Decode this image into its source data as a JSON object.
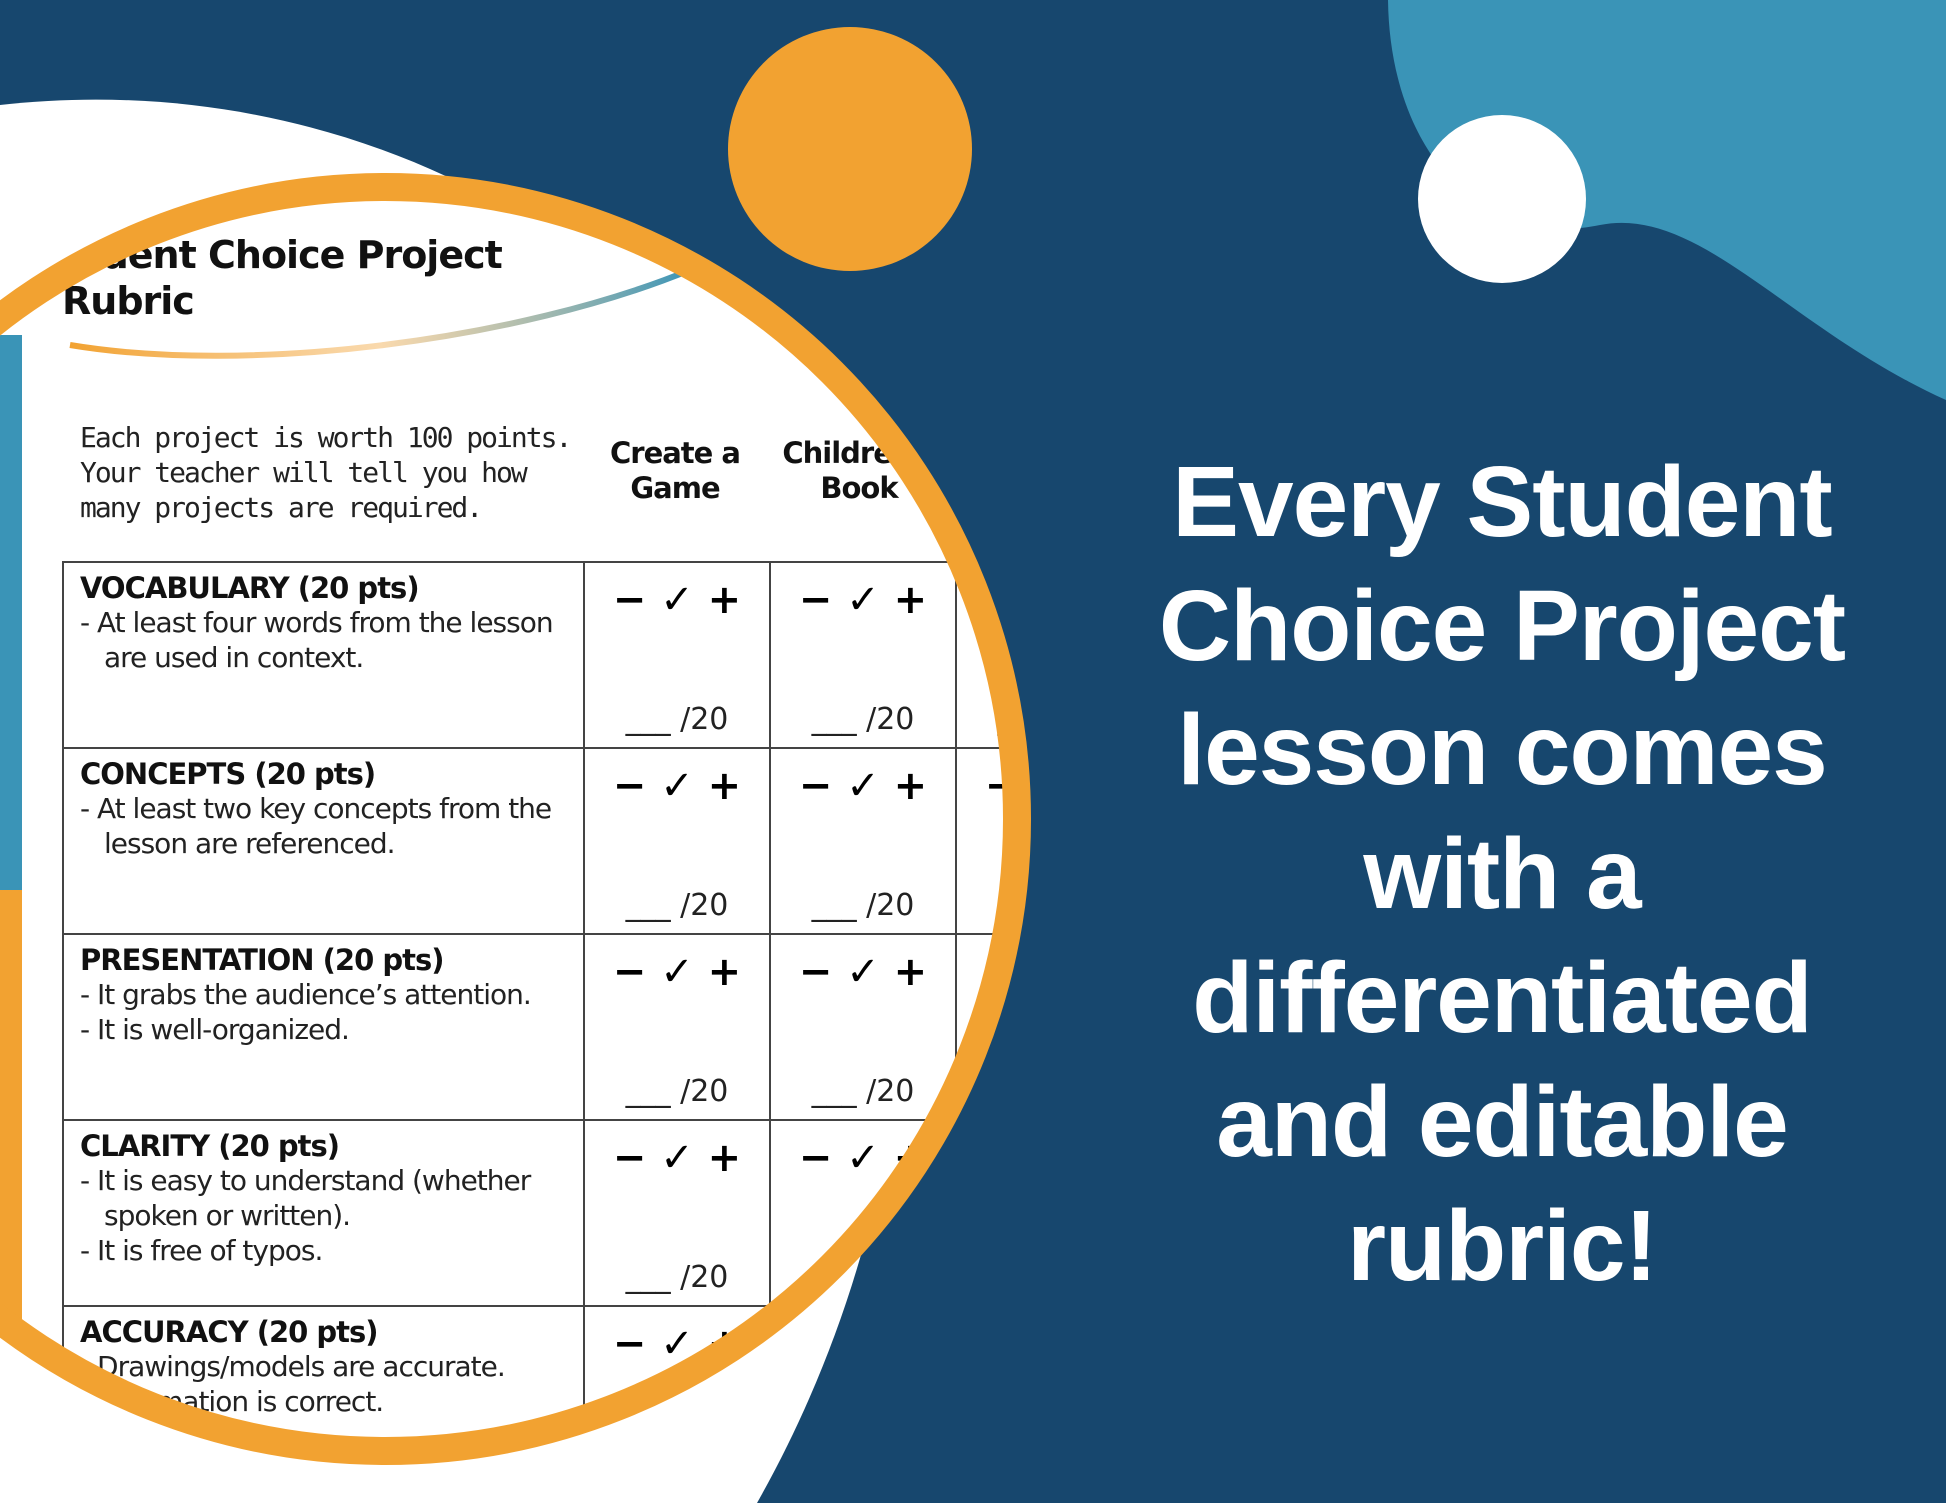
{
  "colors": {
    "navy": "#17476e",
    "orange": "#f2a231",
    "light_blue": "#3a94b7",
    "white": "#ffffff"
  },
  "rubric": {
    "title_line1": "Student Choice Project",
    "title_line2": "Rubric",
    "intro": "Each project is worth 100 points. Your teacher will tell you how many projects are required.",
    "columns": [
      "Create a Game",
      "Children's Book"
    ],
    "marks": "− ✓ +",
    "score": "___ /20",
    "rows": [
      {
        "label": "VOCABULARY (20 pts)",
        "bullets": [
          "- At least four words from the lesson are used in context."
        ]
      },
      {
        "label": "CONCEPTS (20 pts)",
        "bullets": [
          "- At least two key concepts from the lesson are referenced."
        ]
      },
      {
        "label": "PRESENTATION (20 pts)",
        "bullets": [
          "-  It grabs the audience’s attention.",
          "-  It is well-organized."
        ]
      },
      {
        "label": "CLARITY (20 pts)",
        "bullets": [
          "- It is easy to understand (whether spoken or written).",
          "- It is free of typos."
        ]
      },
      {
        "label": "ACCURACY (20 pts)",
        "bullets": [
          "- Drawings/models are accurate.",
          "- Information is correct."
        ]
      }
    ]
  },
  "headline": {
    "lines": [
      "Every Student",
      "Choice Project",
      "lesson comes",
      "with a",
      "differentiated",
      "and editable",
      "rubric!"
    ]
  }
}
